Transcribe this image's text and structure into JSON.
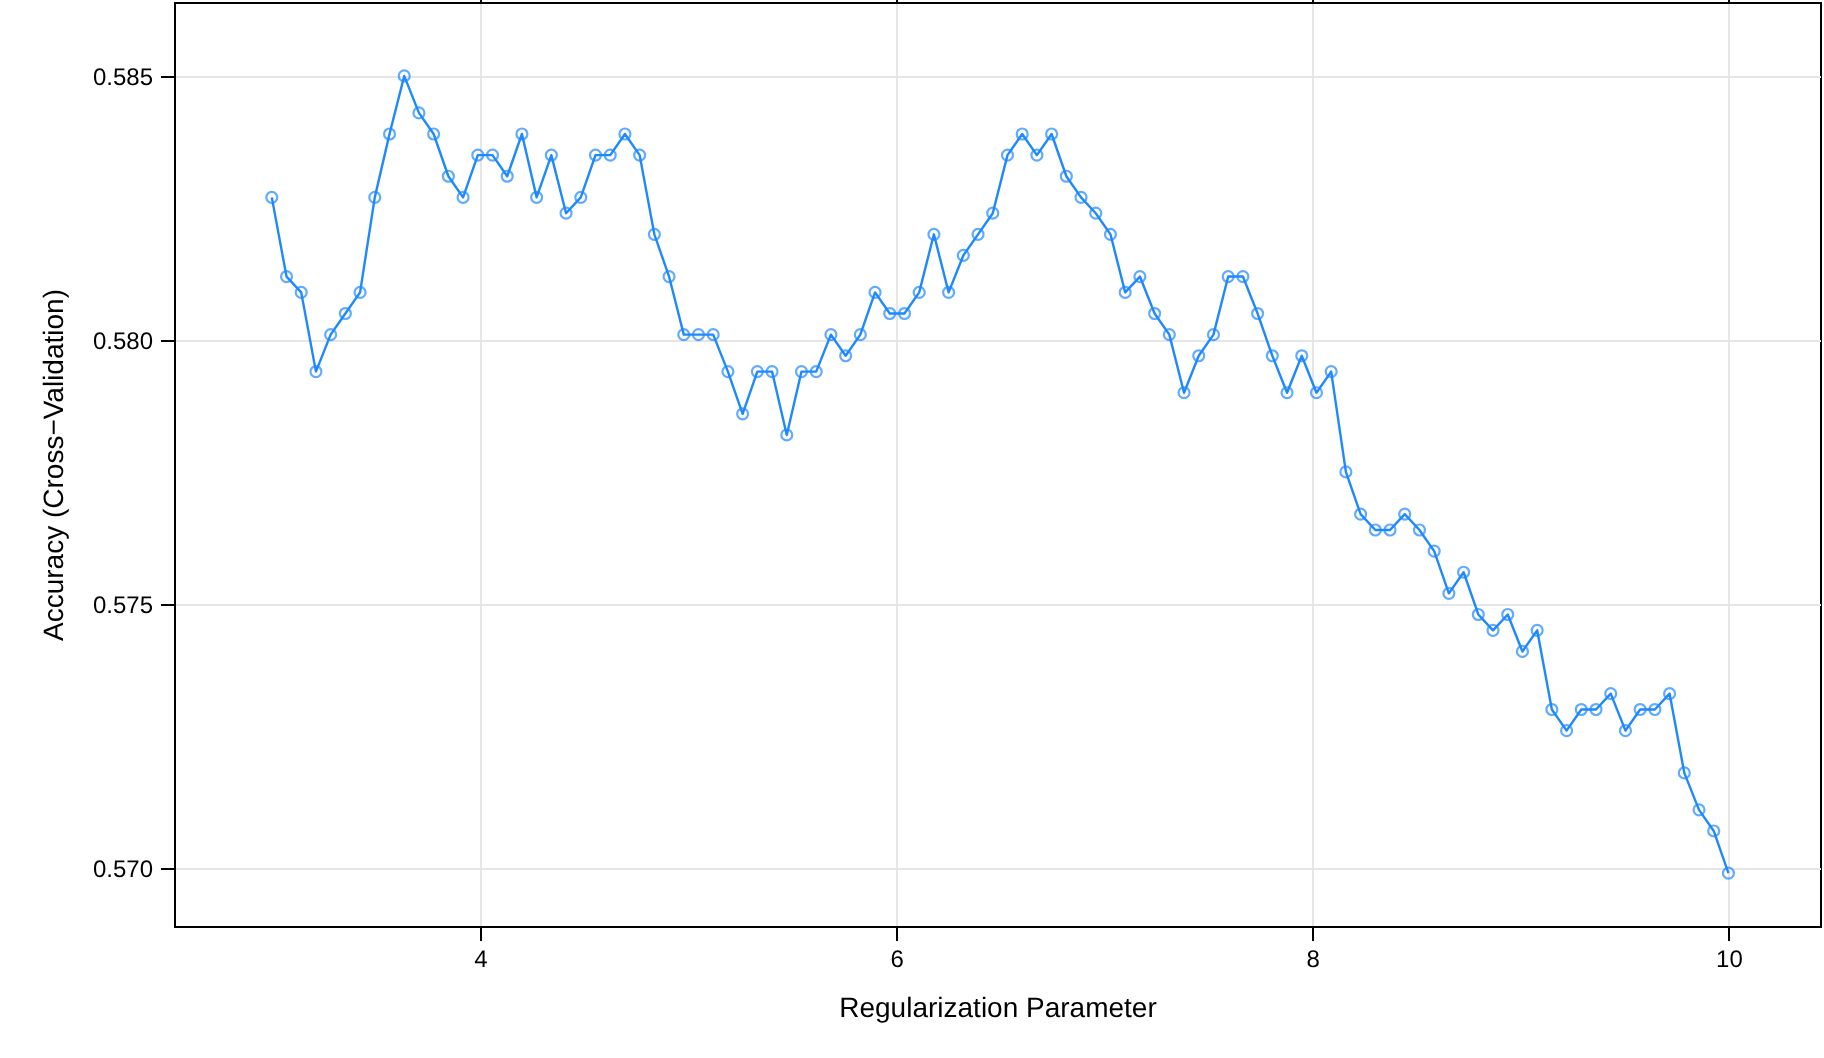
{
  "chart_data": {
    "type": "line",
    "xlabel": "Regularization Parameter",
    "ylabel": "Accuracy (Cross−Validation)",
    "x": [
      3,
      3.0707,
      3.1414,
      3.2121,
      3.2828,
      3.3535,
      3.4242,
      3.4949,
      3.5657,
      3.6364,
      3.7071,
      3.7778,
      3.8485,
      3.9192,
      3.9899,
      4.0606,
      4.1313,
      4.202,
      4.2727,
      4.3434,
      4.4141,
      4.4848,
      4.5556,
      4.6263,
      4.697,
      4.7677,
      4.8384,
      4.9091,
      4.9798,
      5.0505,
      5.1212,
      5.1919,
      5.2626,
      5.3333,
      5.404,
      5.4747,
      5.5455,
      5.6162,
      5.6869,
      5.7576,
      5.8283,
      5.899,
      5.9697,
      6.0404,
      6.1111,
      6.1818,
      6.2525,
      6.3232,
      6.3939,
      6.4646,
      6.5354,
      6.6061,
      6.6768,
      6.7475,
      6.8182,
      6.8889,
      6.9596,
      7.0303,
      7.101,
      7.1717,
      7.2424,
      7.3131,
      7.3838,
      7.4545,
      7.5253,
      7.596,
      7.6667,
      7.7374,
      7.8081,
      7.8788,
      7.9495,
      8.0202,
      8.0909,
      8.1616,
      8.2323,
      8.303,
      8.3737,
      8.4444,
      8.5152,
      8.5859,
      8.6566,
      8.7273,
      8.798,
      8.8687,
      8.9394,
      9.0101,
      9.0808,
      9.1515,
      9.2222,
      9.2929,
      9.3636,
      9.4343,
      9.5051,
      9.5758,
      9.6465,
      9.7172,
      9.7879,
      9.8586,
      9.9293,
      10
    ],
    "series": [
      {
        "color": "#1e88ff",
        "values": [
          0.5827,
          0.5812,
          0.5809,
          0.5794,
          0.5801,
          0.5805,
          0.5809,
          0.5827,
          0.5839,
          0.585,
          0.5843,
          0.5839,
          0.5831,
          0.5827,
          0.5835,
          0.5835,
          0.5831,
          0.5839,
          0.5827,
          0.5835,
          0.5824,
          0.5827,
          0.5835,
          0.5835,
          0.5839,
          0.5835,
          0.582,
          0.5812,
          0.5801,
          0.5801,
          0.5801,
          0.5794,
          0.5786,
          0.5794,
          0.5794,
          0.5782,
          0.5794,
          0.5794,
          0.5801,
          0.5797,
          0.5801,
          0.5809,
          0.5805,
          0.5805,
          0.5809,
          0.582,
          0.5809,
          0.5816,
          0.582,
          0.5824,
          0.5835,
          0.5839,
          0.5835,
          0.5839,
          0.5831,
          0.5827,
          0.5824,
          0.582,
          0.5809,
          0.5812,
          0.5805,
          0.5801,
          0.579,
          0.5797,
          0.5801,
          0.5812,
          0.5812,
          0.5805,
          0.5797,
          0.579,
          0.5797,
          0.579,
          0.5794,
          0.5775,
          0.5767,
          0.5764,
          0.5764,
          0.5767,
          0.5764,
          0.576,
          0.5752,
          0.5756,
          0.5748,
          0.5745,
          0.5748,
          0.5741,
          0.5745,
          0.573,
          0.5726,
          0.573,
          0.573,
          0.5733,
          0.5726,
          0.573,
          0.573,
          0.5733,
          0.5718,
          0.5711,
          0.5707,
          0.5699
        ]
      }
    ],
    "xlim": [
      2.53,
      10.44
    ],
    "ylim": [
      0.5689,
      0.5864
    ],
    "xticks": [
      4,
      6,
      8,
      10
    ],
    "yticks": [
      {
        "value": 0.57,
        "label": "0.570"
      },
      0.575,
      {
        "value": 0.58,
        "label": "0.580"
      },
      0.585
    ],
    "grid": true,
    "marker": "circle",
    "line_style": "solid"
  }
}
